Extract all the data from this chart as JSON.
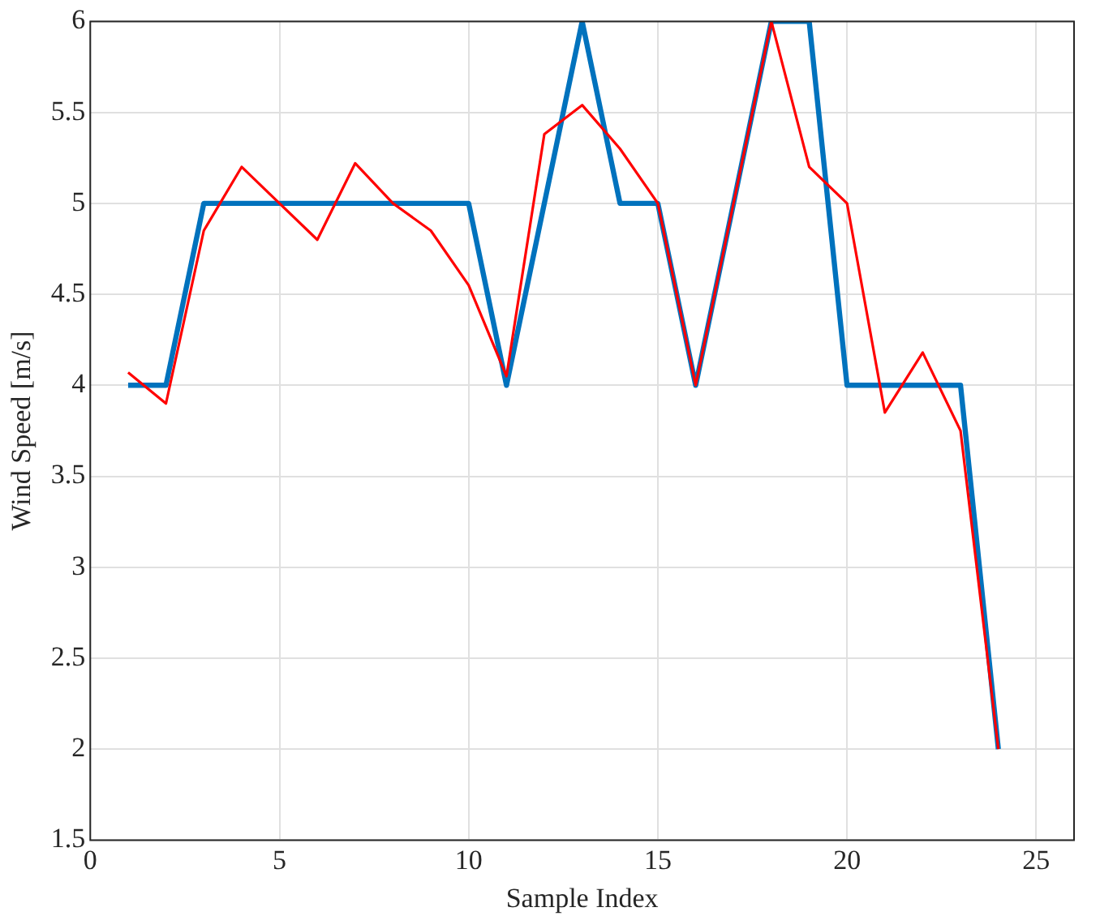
{
  "chart_data": {
    "type": "line",
    "xlabel": "Sample Index",
    "ylabel": "Wind Speed [m/s]",
    "x": [
      1,
      2,
      3,
      4,
      5,
      6,
      7,
      8,
      9,
      10,
      11,
      12,
      13,
      14,
      15,
      16,
      17,
      18,
      19,
      20,
      21,
      22,
      23,
      24
    ],
    "series": [
      {
        "color": "#0072bd",
        "values": [
          4,
          4,
          5,
          5,
          5,
          5,
          5,
          5,
          5,
          5,
          4,
          5,
          6,
          5,
          5,
          4,
          5,
          6,
          6,
          4,
          4,
          4,
          4,
          2
        ]
      },
      {
        "color": "#ff0000",
        "values": [
          4.07,
          3.9,
          4.85,
          5.2,
          5.0,
          4.8,
          5.22,
          5.0,
          4.85,
          4.55,
          4.05,
          5.38,
          5.54,
          5.3,
          5.0,
          4.0,
          5.0,
          6.0,
          5.2,
          5.0,
          3.85,
          4.18,
          3.75,
          2.0
        ]
      }
    ],
    "xlim": [
      0,
      26
    ],
    "xticks": [
      0,
      5,
      10,
      15,
      20,
      25
    ],
    "ylim": [
      1.5,
      6
    ],
    "yticks": [
      1.5,
      2,
      2.5,
      3,
      3.5,
      4,
      4.5,
      5,
      5.5,
      6
    ],
    "grid": true,
    "legend": false,
    "marker": "none",
    "line_style": "solid"
  }
}
